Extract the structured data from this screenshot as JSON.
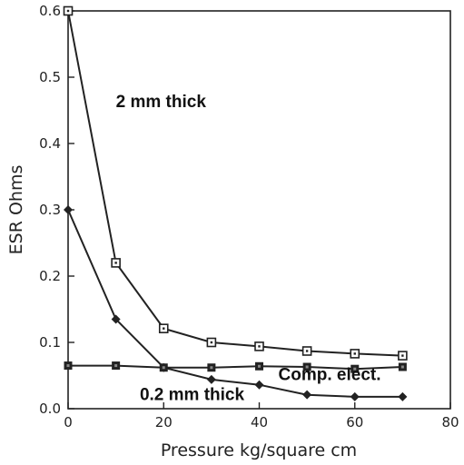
{
  "chart_data": {
    "type": "line",
    "xlabel": "Pressure  kg/square cm",
    "ylabel": "ESR Ohms",
    "xlim": [
      0,
      80
    ],
    "ylim": [
      0,
      0.6
    ],
    "x_ticks": [
      "0",
      "20",
      "40",
      "60",
      "80"
    ],
    "y_ticks": [
      "0.0",
      "0.1",
      "0.2",
      "0.3",
      "0.4",
      "0.5",
      "0.6"
    ],
    "grid": false,
    "series": [
      {
        "marker": "open-square",
        "color": "#222222",
        "points": [
          [
            0,
            0.6
          ],
          [
            10,
            0.22
          ],
          [
            20,
            0.121
          ],
          [
            30,
            0.1
          ],
          [
            40,
            0.094
          ],
          [
            50,
            0.087
          ],
          [
            60,
            0.083
          ],
          [
            70,
            0.08
          ]
        ]
      },
      {
        "marker": "filled-diamond",
        "color": "#222222",
        "points": [
          [
            0,
            0.3
          ],
          [
            10,
            0.135
          ],
          [
            20,
            0.062
          ],
          [
            30,
            0.044
          ],
          [
            40,
            0.036
          ],
          [
            50,
            0.021
          ],
          [
            60,
            0.018
          ],
          [
            70,
            0.018
          ]
        ]
      },
      {
        "marker": "filled-square",
        "color": "#222222",
        "points": [
          [
            0,
            0.065
          ],
          [
            10,
            0.065
          ],
          [
            20,
            0.062
          ],
          [
            30,
            0.062
          ],
          [
            40,
            0.064
          ],
          [
            50,
            0.063
          ],
          [
            60,
            0.06
          ],
          [
            70,
            0.063
          ]
        ]
      }
    ],
    "annotations": [
      {
        "text": "2 mm thick",
        "x": 10,
        "y": 0.455
      },
      {
        "text": "Comp. elect.",
        "x": 44,
        "y": 0.043
      },
      {
        "text": "0.2 mm thick",
        "x": 15,
        "y": 0.013
      }
    ]
  }
}
